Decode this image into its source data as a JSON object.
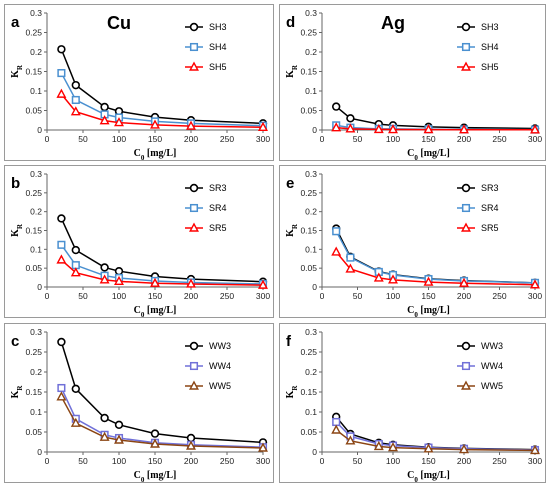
{
  "chart_data": [
    {
      "id": "a",
      "type": "line",
      "panel_letter": "a",
      "element_label": "Cu",
      "xlabel": "C0 [mg/L]",
      "ylabel": "KR",
      "xlim": [
        0,
        300
      ],
      "ylim": [
        0,
        0.3
      ],
      "xticks": [
        0,
        50,
        100,
        150,
        200,
        250,
        300
      ],
      "yticks": [
        0,
        0.05,
        0.1,
        0.15,
        0.2,
        0.25,
        0.3
      ],
      "x": [
        20,
        40,
        80,
        100,
        150,
        200,
        300
      ],
      "series": [
        {
          "name": "SH3",
          "color": "#000000",
          "marker": "circle",
          "values": [
            0.207,
            0.115,
            0.059,
            0.048,
            0.033,
            0.025,
            0.017
          ]
        },
        {
          "name": "SH4",
          "color": "#4a90d0",
          "marker": "square",
          "values": [
            0.146,
            0.077,
            0.04,
            0.032,
            0.022,
            0.017,
            0.011
          ]
        },
        {
          "name": "SH5",
          "color": "#ff0000",
          "marker": "triangle",
          "values": [
            0.092,
            0.047,
            0.024,
            0.019,
            0.013,
            0.01,
            0.007
          ]
        }
      ]
    },
    {
      "id": "d",
      "type": "line",
      "panel_letter": "d",
      "element_label": "Ag",
      "xlabel": "C0 [mg/L]",
      "ylabel": "KR",
      "xlim": [
        0,
        300
      ],
      "ylim": [
        0,
        0.3
      ],
      "xticks": [
        0,
        50,
        100,
        150,
        200,
        250,
        300
      ],
      "yticks": [
        0,
        0.05,
        0.1,
        0.15,
        0.2,
        0.25,
        0.3
      ],
      "x": [
        20,
        40,
        80,
        100,
        150,
        200,
        300
      ],
      "series": [
        {
          "name": "SH3",
          "color": "#000000",
          "marker": "circle",
          "values": [
            0.06,
            0.03,
            0.015,
            0.012,
            0.008,
            0.006,
            0.004
          ]
        },
        {
          "name": "SH4",
          "color": "#4a90d0",
          "marker": "square",
          "values": [
            0.012,
            0.006,
            0.003,
            0.003,
            0.002,
            0.0015,
            0.001
          ]
        },
        {
          "name": "SH5",
          "color": "#ff0000",
          "marker": "triangle",
          "values": [
            0.006,
            0.003,
            0.0015,
            0.0012,
            0.001,
            0.0008,
            0.0005
          ]
        }
      ]
    },
    {
      "id": "b",
      "type": "line",
      "panel_letter": "b",
      "element_label": "",
      "xlabel": "C0 [mg/L]",
      "ylabel": "KR",
      "xlim": [
        0,
        300
      ],
      "ylim": [
        0,
        0.3
      ],
      "xticks": [
        0,
        50,
        100,
        150,
        200,
        250,
        300
      ],
      "yticks": [
        0,
        0.05,
        0.1,
        0.15,
        0.2,
        0.25,
        0.3
      ],
      "x": [
        20,
        40,
        80,
        100,
        150,
        200,
        300
      ],
      "series": [
        {
          "name": "SR3",
          "color": "#000000",
          "marker": "circle",
          "values": [
            0.182,
            0.098,
            0.052,
            0.042,
            0.028,
            0.021,
            0.014
          ]
        },
        {
          "name": "SR4",
          "color": "#4a90d0",
          "marker": "square",
          "values": [
            0.112,
            0.058,
            0.03,
            0.024,
            0.016,
            0.012,
            0.008
          ]
        },
        {
          "name": "SR5",
          "color": "#ff0000",
          "marker": "triangle",
          "values": [
            0.072,
            0.038,
            0.019,
            0.015,
            0.01,
            0.008,
            0.005
          ]
        }
      ]
    },
    {
      "id": "e",
      "type": "line",
      "panel_letter": "e",
      "element_label": "",
      "xlabel": "C0 [mg/L]",
      "ylabel": "KR",
      "xlim": [
        0,
        300
      ],
      "ylim": [
        0,
        0.3
      ],
      "xticks": [
        0,
        50,
        100,
        150,
        200,
        250,
        300
      ],
      "yticks": [
        0,
        0.05,
        0.1,
        0.15,
        0.2,
        0.25,
        0.3
      ],
      "x": [
        20,
        40,
        80,
        100,
        150,
        200,
        300
      ],
      "series": [
        {
          "name": "SR3",
          "color": "#000000",
          "marker": "circle",
          "values": [
            0.155,
            0.08,
            0.041,
            0.033,
            0.022,
            0.017,
            0.011
          ]
        },
        {
          "name": "SR4",
          "color": "#4a90d0",
          "marker": "square",
          "values": [
            0.148,
            0.078,
            0.04,
            0.032,
            0.021,
            0.016,
            0.011
          ]
        },
        {
          "name": "SR5",
          "color": "#ff0000",
          "marker": "triangle",
          "values": [
            0.093,
            0.048,
            0.024,
            0.019,
            0.013,
            0.01,
            0.006
          ]
        }
      ]
    },
    {
      "id": "c",
      "type": "line",
      "panel_letter": "c",
      "element_label": "",
      "xlabel": "C0 [mg/L]",
      "ylabel": "KR",
      "xlim": [
        0,
        300
      ],
      "ylim": [
        0,
        0.3
      ],
      "xticks": [
        0,
        50,
        100,
        150,
        200,
        250,
        300
      ],
      "yticks": [
        0,
        0.05,
        0.1,
        0.15,
        0.2,
        0.25,
        0.3
      ],
      "x": [
        20,
        40,
        80,
        100,
        150,
        200,
        300
      ],
      "series": [
        {
          "name": "WW3",
          "color": "#000000",
          "marker": "circle",
          "values": [
            0.275,
            0.158,
            0.085,
            0.068,
            0.046,
            0.035,
            0.024
          ]
        },
        {
          "name": "WW4",
          "color": "#7070d8",
          "marker": "square",
          "values": [
            0.16,
            0.083,
            0.043,
            0.035,
            0.023,
            0.018,
            0.012
          ]
        },
        {
          "name": "WW5",
          "color": "#8b4513",
          "marker": "triangle",
          "values": [
            0.138,
            0.072,
            0.037,
            0.03,
            0.02,
            0.015,
            0.01
          ]
        }
      ]
    },
    {
      "id": "f",
      "type": "line",
      "panel_letter": "f",
      "element_label": "",
      "xlabel": "C0 [mg/L]",
      "ylabel": "KR",
      "xlim": [
        0,
        300
      ],
      "ylim": [
        0,
        0.3
      ],
      "xticks": [
        0,
        50,
        100,
        150,
        200,
        250,
        300
      ],
      "yticks": [
        0,
        0.05,
        0.1,
        0.15,
        0.2,
        0.25,
        0.3
      ],
      "x": [
        20,
        40,
        80,
        100,
        150,
        200,
        300
      ],
      "series": [
        {
          "name": "WW3",
          "color": "#000000",
          "marker": "circle",
          "values": [
            0.088,
            0.045,
            0.023,
            0.018,
            0.012,
            0.009,
            0.006
          ]
        },
        {
          "name": "WW4",
          "color": "#7070d8",
          "marker": "square",
          "values": [
            0.075,
            0.039,
            0.02,
            0.016,
            0.011,
            0.008,
            0.005
          ]
        },
        {
          "name": "WW5",
          "color": "#8b4513",
          "marker": "triangle",
          "values": [
            0.055,
            0.028,
            0.014,
            0.011,
            0.008,
            0.006,
            0.004
          ]
        }
      ]
    }
  ]
}
